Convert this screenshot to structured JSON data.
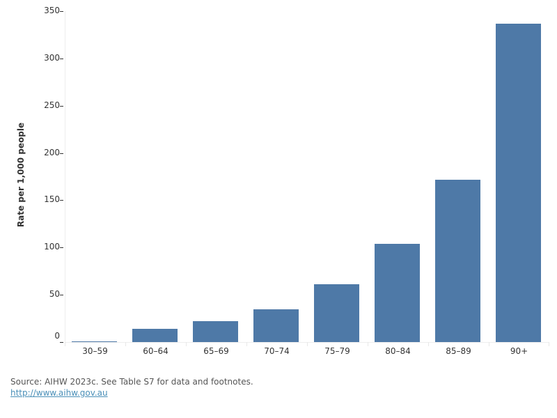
{
  "chart_data": {
    "type": "bar",
    "title": "",
    "xlabel": "",
    "ylabel": "Rate per 1,000 people",
    "categories": [
      "30–59",
      "60–64",
      "65–69",
      "70–74",
      "75–79",
      "80–84",
      "85–89",
      "90+"
    ],
    "values": [
      1,
      14,
      22,
      35,
      61,
      104,
      172,
      337
    ],
    "ylim": [
      0,
      350
    ],
    "yticks": [
      0,
      50,
      100,
      150,
      200,
      250,
      300,
      350
    ],
    "grid": false,
    "legend": null,
    "bar_color": "#4E79A7"
  },
  "footer": {
    "source": "Source: AIHW 2023c. See Table S7 for data and footnotes.",
    "link_text": "http://www.aihw.gov.au"
  }
}
